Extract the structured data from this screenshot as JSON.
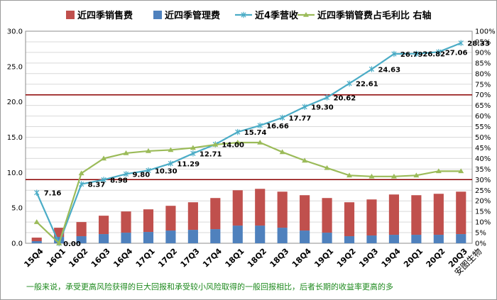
{
  "chart_data": {
    "type": "bar",
    "categories": [
      "15Q4",
      "16Q1",
      "16Q2",
      "16Q3",
      "16Q4",
      "17Q1",
      "17Q2",
      "17Q3",
      "17Q4",
      "18Q1",
      "18Q2",
      "18Q3",
      "18Q4",
      "19Q1",
      "19Q2",
      "19Q3",
      "19Q4",
      "20Q1",
      "20Q2",
      "20Q3"
    ],
    "series": [
      {
        "name": "近四季销售费",
        "kind": "bar",
        "axis": "left",
        "color": "#c0504d",
        "values": [
          0.5,
          1.3,
          2.0,
          2.6,
          3.0,
          3.2,
          3.5,
          3.9,
          4.4,
          5.0,
          5.2,
          5.1,
          5.0,
          4.9,
          4.8,
          5.1,
          5.7,
          5.6,
          5.8,
          6.0
        ]
      },
      {
        "name": "近四季管理费",
        "kind": "bar",
        "axis": "left",
        "color": "#4f81bd",
        "values": [
          0.3,
          0.9,
          1.0,
          1.3,
          1.5,
          1.6,
          1.8,
          1.9,
          2.0,
          2.5,
          2.5,
          2.2,
          1.8,
          1.5,
          1.0,
          1.1,
          1.2,
          1.2,
          1.2,
          1.3
        ]
      },
      {
        "name": "近4季营收",
        "kind": "line",
        "axis": "left",
        "color": "#4bacc6",
        "values": [
          7.16,
          0.0,
          8.37,
          8.98,
          9.8,
          10.3,
          11.29,
          12.71,
          14.0,
          15.74,
          16.66,
          17.77,
          19.3,
          20.62,
          22.61,
          24.63,
          26.79,
          26.82,
          27.06,
          28.33
        ],
        "labels": [
          "7.16",
          "0.00",
          "8.37",
          "8.98",
          "9.80",
          "10.30",
          "11.29",
          "12.71",
          "14.00",
          "15.74",
          "16.66",
          "17.77",
          "19.30",
          "20.62",
          "22.61",
          "24.63",
          "26.79",
          "26.82",
          "27.06",
          "28.33"
        ]
      },
      {
        "name": "近四季销管费占毛利比 右轴",
        "kind": "line",
        "axis": "right",
        "color": "#9bbb59",
        "values": [
          10,
          0,
          33,
          40,
          42.5,
          43.5,
          44,
          45,
          46.5,
          47.5,
          47.5,
          43,
          39,
          35.5,
          32,
          31.5,
          31.5,
          32,
          34,
          34
        ]
      }
    ],
    "y_left": {
      "min": 0,
      "max": 30,
      "ticks": [
        "0.0",
        "5.0",
        "10.0",
        "15.0",
        "20.0",
        "25.0",
        "30.0"
      ]
    },
    "y_right": {
      "min": 0,
      "max": 100,
      "ticks": [
        "0%",
        "5%",
        "10%",
        "15%",
        "20%",
        "25%",
        "30%",
        "35%",
        "40%",
        "45%",
        "50%",
        "55%",
        "60%",
        "65%",
        "70%",
        "75%",
        "80%",
        "85%",
        "90%",
        "95%",
        "100%"
      ]
    },
    "reference_lines": [
      {
        "axis": "right",
        "value": 30,
        "color": "#8b0000"
      },
      {
        "axis": "right",
        "value": 70,
        "color": "#8b0000"
      }
    ],
    "grid": "horizontal",
    "legend": "top"
  },
  "note": "一般来说，承受更高风险获得的巨大回报和承受较小风险取得的一般回报相比，后者长期的收益率更高的多",
  "source": "安图生物"
}
